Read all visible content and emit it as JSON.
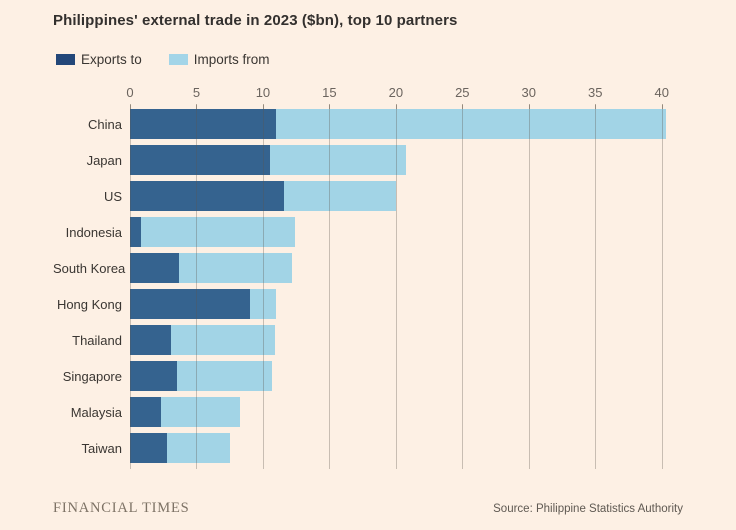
{
  "title": "Philippines' external trade in 2023 ($bn), top 10 partners",
  "legend": {
    "items": [
      {
        "label": "Exports to",
        "color": "#234779"
      },
      {
        "label": "Imports from",
        "color": "#a3d5e8"
      }
    ]
  },
  "footer": {
    "brand": "FINANCIAL TIMES",
    "source": "Source: Philippine Statistics Authority"
  },
  "colors": {
    "background": "#fdf0e4",
    "exports_bar": "#35638f",
    "imports_bar": "#a2d4e6",
    "grid_line": "rgba(95,85,75,0.33)",
    "tick_mark": "#b0a496",
    "title_text": "#33302e",
    "axis_text": "#6b645e"
  },
  "chart_data": {
    "type": "bar",
    "orientation": "horizontal",
    "stacked": true,
    "title": "Philippines' external trade in 2023 ($bn), top 10 partners",
    "categories": [
      "China",
      "Japan",
      "US",
      "Indonesia",
      "South Korea",
      "Hong Kong",
      "Thailand",
      "Singapore",
      "Malaysia",
      "Taiwan"
    ],
    "series": [
      {
        "name": "Exports to",
        "color": "#35638f",
        "values": [
          11.0,
          10.5,
          11.6,
          0.8,
          3.7,
          9.0,
          3.1,
          3.5,
          2.3,
          2.8
        ]
      },
      {
        "name": "Imports from",
        "color": "#a2d4e6",
        "values": [
          29.3,
          10.3,
          8.4,
          11.6,
          8.5,
          2.0,
          7.8,
          7.2,
          6.0,
          4.7
        ]
      }
    ],
    "totals": [
      40.3,
      20.8,
      20.0,
      12.4,
      12.2,
      11.0,
      10.9,
      10.7,
      8.3,
      7.5
    ],
    "xlabel": "",
    "ylabel": "",
    "value_axis_ticks": [
      0,
      5,
      10,
      15,
      20,
      25,
      30,
      35,
      40
    ],
    "value_axis_max": 41,
    "grid": true,
    "legend_position": "top-left",
    "source": "Source: Philippine Statistics Authority"
  }
}
